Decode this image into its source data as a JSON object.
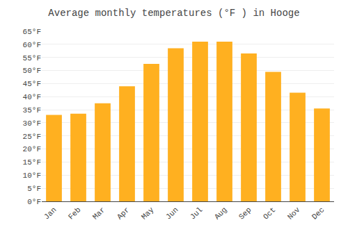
{
  "chart_data": {
    "type": "bar",
    "title": "Average monthly temperatures (°F ) in Hooge",
    "categories": [
      "Jan",
      "Feb",
      "Mar",
      "Apr",
      "May",
      "Jun",
      "Jul",
      "Aug",
      "Sep",
      "Oct",
      "Nov",
      "Dec"
    ],
    "values": [
      33,
      33.5,
      37.5,
      44,
      52.5,
      58.5,
      61,
      61,
      56.5,
      49.5,
      41.5,
      35.5
    ],
    "color": "#FFB020",
    "ylim": [
      0,
      65
    ],
    "yticks": [
      {
        "value": 0,
        "label": "0°F"
      },
      {
        "value": 5,
        "label": "5°F"
      },
      {
        "value": 10,
        "label": "10°F"
      },
      {
        "value": 15,
        "label": "15°F"
      },
      {
        "value": 20,
        "label": "20°F"
      },
      {
        "value": 25,
        "label": "25°F"
      },
      {
        "value": 30,
        "label": "30°F"
      },
      {
        "value": 35,
        "label": "35°F"
      },
      {
        "value": 40,
        "label": "40°F"
      },
      {
        "value": 45,
        "label": "45°F"
      },
      {
        "value": 50,
        "label": "50°F"
      },
      {
        "value": 55,
        "label": "55°F"
      },
      {
        "value": 60,
        "label": "60°F"
      },
      {
        "value": 65,
        "label": "65°F"
      }
    ],
    "grid": true
  }
}
